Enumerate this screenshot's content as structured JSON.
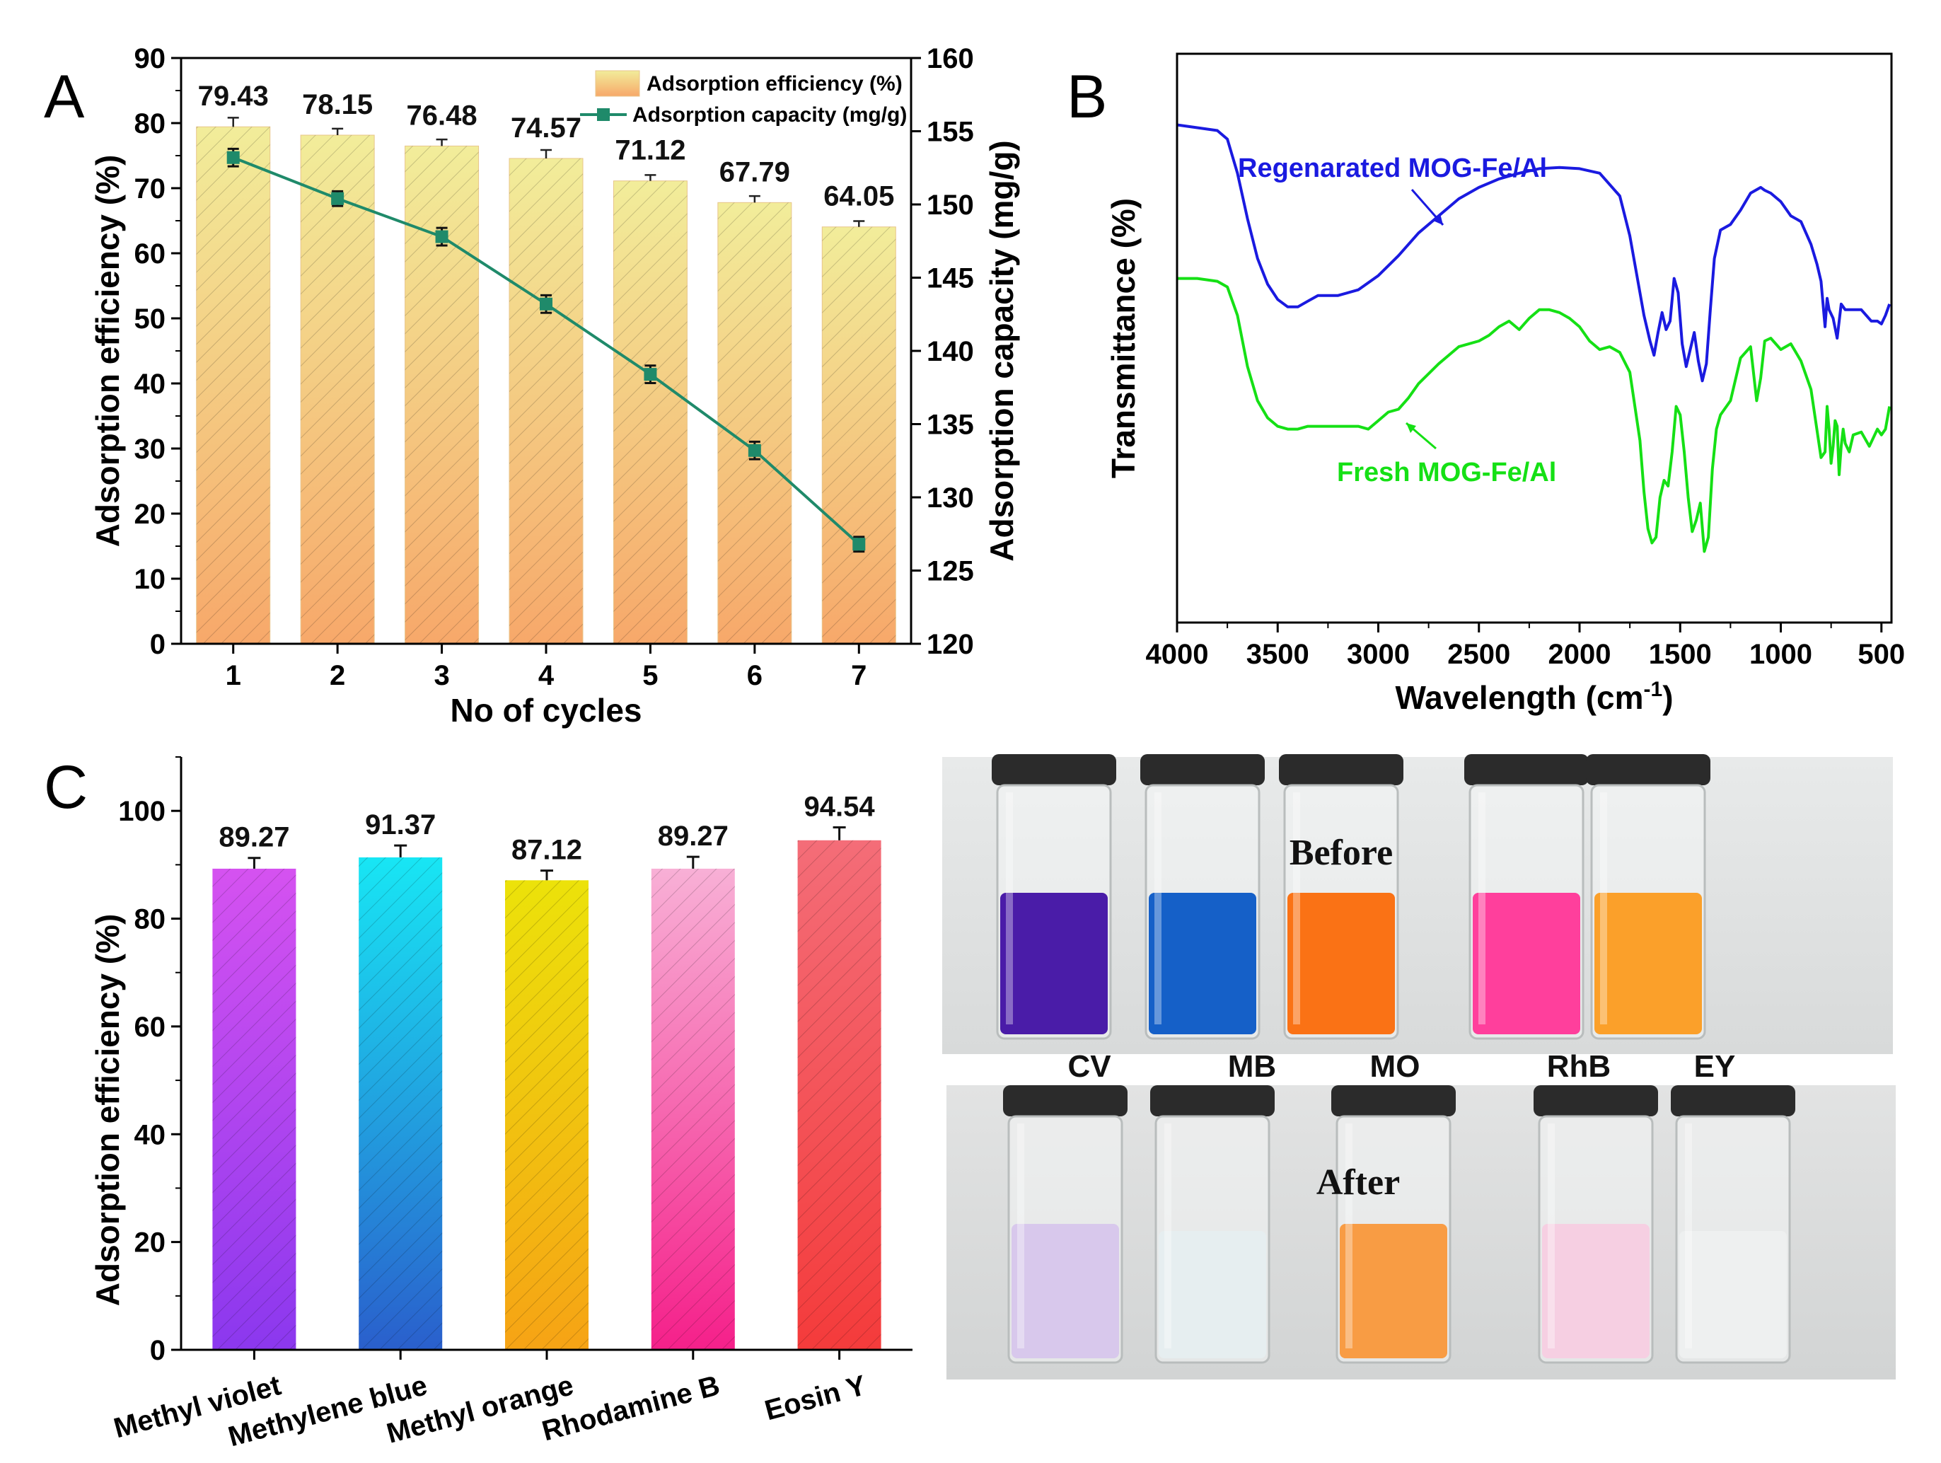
{
  "panels": {
    "a": "A",
    "b": "B",
    "c": "C"
  },
  "chart_data": [
    {
      "id": "A",
      "type": "bar+line",
      "xlabel": "No of cycles",
      "ylabel": "Adsorption efficiency (%)",
      "y2label": "Adsorption capacity (mg/g)",
      "categories": [
        "1",
        "2",
        "3",
        "4",
        "5",
        "6",
        "7"
      ],
      "ylim": [
        0,
        90
      ],
      "yticks": [
        0,
        10,
        20,
        30,
        40,
        50,
        60,
        70,
        80,
        90
      ],
      "y2lim": [
        120,
        160
      ],
      "y2ticks": [
        120,
        125,
        130,
        135,
        140,
        145,
        150,
        155,
        160
      ],
      "legend_position": "top-right",
      "series": [
        {
          "name": "Adsorption efficiency (%)",
          "kind": "bar",
          "axis": "left",
          "values": [
            79.43,
            78.15,
            76.48,
            74.57,
            71.12,
            67.79,
            64.05
          ],
          "labels": [
            "79.43",
            "78.15",
            "76.48",
            "74.57",
            "71.12",
            "67.79",
            "64.05"
          ],
          "errors": [
            1.4,
            1.0,
            1.0,
            1.3,
            0.9,
            1.0,
            0.9
          ]
        },
        {
          "name": "Adsorption capacity (mg/g)",
          "kind": "line",
          "axis": "right",
          "values": [
            153.2,
            150.4,
            147.8,
            143.2,
            138.4,
            133.2,
            126.8
          ],
          "errors": [
            0.6,
            0.5,
            0.6,
            0.6,
            0.6,
            0.6,
            0.5
          ]
        }
      ],
      "colors": {
        "bar_top": "#f2ed9a",
        "bar_bottom": "#f6a86a",
        "hatch": "#c8b46a",
        "line": "#1f8a6a"
      }
    },
    {
      "id": "B",
      "type": "line",
      "xlabel": "Wavelength (cm",
      "xlabel_sup": "-1",
      "xlabel_close": ")",
      "ylabel": "Transmittance (%)",
      "xlim": [
        4000,
        450
      ],
      "xticks": [
        4000,
        3500,
        3000,
        2500,
        2000,
        1500,
        1000,
        500
      ],
      "ylim": [
        0,
        100
      ],
      "series": [
        {
          "name": "Regenarated MOG-Fe/Al",
          "color": "#1a1ae0",
          "x": [
            4000,
            3900,
            3800,
            3750,
            3700,
            3650,
            3600,
            3550,
            3500,
            3450,
            3400,
            3350,
            3300,
            3200,
            3100,
            3000,
            2900,
            2800,
            2700,
            2600,
            2500,
            2400,
            2300,
            2200,
            2100,
            2000,
            1900,
            1800,
            1750,
            1700,
            1680,
            1650,
            1630,
            1610,
            1590,
            1570,
            1550,
            1530,
            1510,
            1490,
            1470,
            1450,
            1430,
            1410,
            1390,
            1370,
            1350,
            1330,
            1300,
            1250,
            1200,
            1150,
            1100,
            1080,
            1050,
            1000,
            950,
            900,
            850,
            820,
            800,
            780,
            770,
            760,
            740,
            720,
            700,
            680,
            650,
            600,
            550,
            520,
            500,
            480,
            460
          ],
          "y": [
            87.5,
            87.0,
            86.5,
            85.0,
            79.0,
            71.0,
            64.0,
            59.5,
            56.8,
            55.5,
            55.5,
            56.5,
            57.5,
            57.5,
            58.5,
            61.0,
            64.5,
            68.5,
            71.5,
            74.5,
            76.5,
            78.0,
            79.0,
            79.8,
            80.0,
            79.8,
            79.0,
            75.0,
            68.0,
            58.0,
            54.0,
            49.5,
            47.0,
            51.0,
            54.5,
            51.5,
            53.0,
            60.5,
            58.0,
            49.0,
            45.0,
            48.0,
            51.0,
            46.0,
            42.5,
            45.5,
            55.0,
            64.0,
            69.0,
            70.0,
            72.5,
            75.5,
            76.5,
            76.0,
            75.5,
            74.0,
            71.5,
            70.5,
            66.5,
            63.0,
            60.0,
            52.0,
            57.0,
            55.0,
            53.5,
            50.0,
            56.0,
            55.0,
            55.0,
            55.0,
            53.0,
            53.0,
            52.5,
            54.0,
            56.0
          ]
        },
        {
          "name": "Fresh MOG-Fe/Al",
          "color": "#15e015",
          "x": [
            4000,
            3900,
            3800,
            3750,
            3700,
            3650,
            3600,
            3550,
            3500,
            3450,
            3400,
            3350,
            3300,
            3200,
            3100,
            3050,
            3000,
            2950,
            2900,
            2850,
            2800,
            2700,
            2600,
            2500,
            2450,
            2400,
            2350,
            2300,
            2250,
            2200,
            2150,
            2100,
            2050,
            2000,
            1950,
            1900,
            1850,
            1800,
            1750,
            1700,
            1680,
            1660,
            1640,
            1620,
            1600,
            1580,
            1560,
            1540,
            1520,
            1500,
            1480,
            1460,
            1440,
            1420,
            1400,
            1380,
            1360,
            1340,
            1320,
            1300,
            1250,
            1200,
            1150,
            1120,
            1100,
            1080,
            1050,
            1000,
            950,
            900,
            850,
            800,
            780,
            770,
            760,
            750,
            740,
            730,
            720,
            710,
            700,
            690,
            680,
            660,
            640,
            600,
            560,
            520,
            500,
            480,
            460
          ],
          "y": [
            60.5,
            60.5,
            60.0,
            59.0,
            54.0,
            45.0,
            39.0,
            36.0,
            34.5,
            34.0,
            34.0,
            34.5,
            34.5,
            34.5,
            34.5,
            34.0,
            35.5,
            37.0,
            37.5,
            39.5,
            42.0,
            45.5,
            48.5,
            49.5,
            50.5,
            52.0,
            53.0,
            51.5,
            53.5,
            55.0,
            55.0,
            54.5,
            53.5,
            52.0,
            49.5,
            48.0,
            48.5,
            47.5,
            44.0,
            32.0,
            23.0,
            16.5,
            14.0,
            15.0,
            22.0,
            25.0,
            24.0,
            30.0,
            38.0,
            36.5,
            30.0,
            22.0,
            16.0,
            18.0,
            21.0,
            12.5,
            15.0,
            27.0,
            34.0,
            36.5,
            39.0,
            46.5,
            48.5,
            39.0,
            43.0,
            49.5,
            50.0,
            48.0,
            49.0,
            46.0,
            41.0,
            29.0,
            30.0,
            38.0,
            34.0,
            28.0,
            31.0,
            35.5,
            34.5,
            26.0,
            31.0,
            34.0,
            31.5,
            30.0,
            33.0,
            33.5,
            31.0,
            34.0,
            33.0,
            34.0,
            38.0
          ]
        }
      ],
      "annotations": [
        "Regenarated MOG-Fe/Al",
        "Fresh MOG-Fe/Al"
      ]
    },
    {
      "id": "C",
      "type": "bar",
      "ylabel": "Adsorption efficiency (%)",
      "categories": [
        "Methyl violet",
        "Methylene blue",
        "Methyl orange",
        "Rhodamine B",
        "Eosin Y"
      ],
      "values": [
        89.27,
        91.37,
        87.12,
        89.27,
        94.54
      ],
      "labels": [
        "89.27",
        "91.37",
        "87.12",
        "89.27",
        "94.54"
      ],
      "errors": [
        2.0,
        2.2,
        1.8,
        2.2,
        2.4
      ],
      "ylim": [
        0,
        110
      ],
      "yticks": [
        0,
        20,
        40,
        60,
        80,
        100
      ],
      "bar_colors": [
        [
          "#d552f0",
          "#8b38ee"
        ],
        [
          "#18e6f4",
          "#2a5fcc"
        ],
        [
          "#ece20a",
          "#f6a315"
        ],
        [
          "#f8b0d6",
          "#f5208a"
        ],
        [
          "#f46d78",
          "#f43b3b"
        ]
      ]
    }
  ],
  "photo": {
    "before_label": "Before",
    "after_label": "After",
    "vial_labels": [
      "CV",
      "MB",
      "MO",
      "RhB",
      "EY"
    ],
    "before_colors": [
      "#4a1ca8",
      "#1560c8",
      "#fa7215",
      "#ff3f9c",
      "#fba02a"
    ],
    "after_colors": [
      "#d8c8ec",
      "#e6eef0",
      "#f89c44",
      "#f6cfe2",
      "#eef0f0"
    ]
  }
}
